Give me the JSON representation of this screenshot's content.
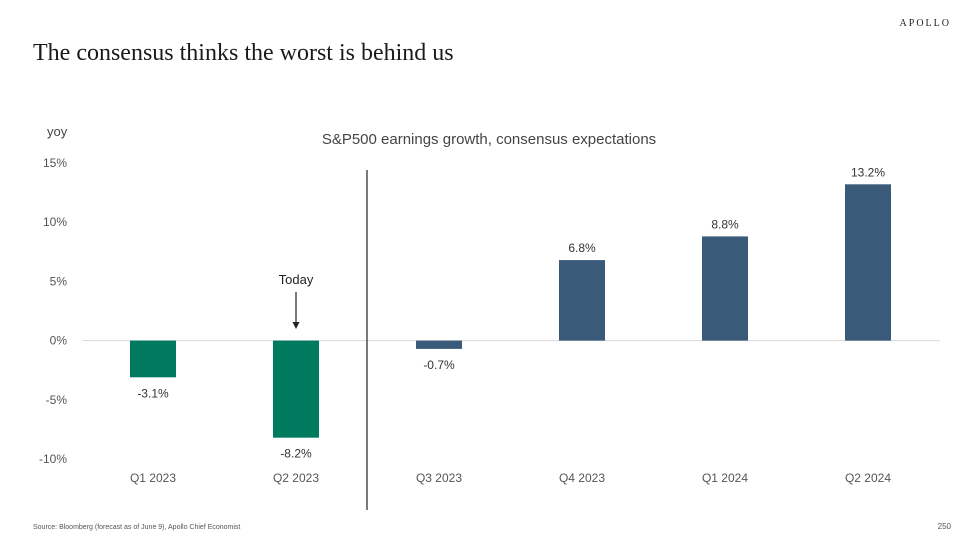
{
  "header": {
    "brand": "APOLLO",
    "title": "The consensus thinks the worst is behind us"
  },
  "footer": {
    "source": "Source: Bloomberg (forecast as of June 9), Apollo Chief Economist",
    "page_number": "250"
  },
  "chart_data": {
    "type": "bar",
    "title": "S&P500 earnings growth, consensus expectations",
    "ylabel": "yoy",
    "categories": [
      "Q1 2023",
      "Q2 2023",
      "Q3 2023",
      "Q4 2023",
      "Q1 2024",
      "Q2 2024"
    ],
    "values": [
      -3.1,
      -8.2,
      -0.7,
      6.8,
      8.8,
      13.2
    ],
    "value_labels": [
      "-3.1%",
      "-8.2%",
      "-0.7%",
      "6.8%",
      "8.8%",
      "13.2%"
    ],
    "ylim": [
      -10,
      15
    ],
    "yticks": [
      15,
      10,
      5,
      0,
      -5,
      -10
    ],
    "ytick_labels": [
      "15%",
      "10%",
      "5%",
      "0%",
      "-5%",
      "-10%"
    ],
    "grid": false,
    "colors": {
      "actual": "#007A5E",
      "forecast": "#3A5A7A"
    },
    "actual_count": 2,
    "annotation": {
      "text": "Today",
      "category_index": 1
    }
  }
}
